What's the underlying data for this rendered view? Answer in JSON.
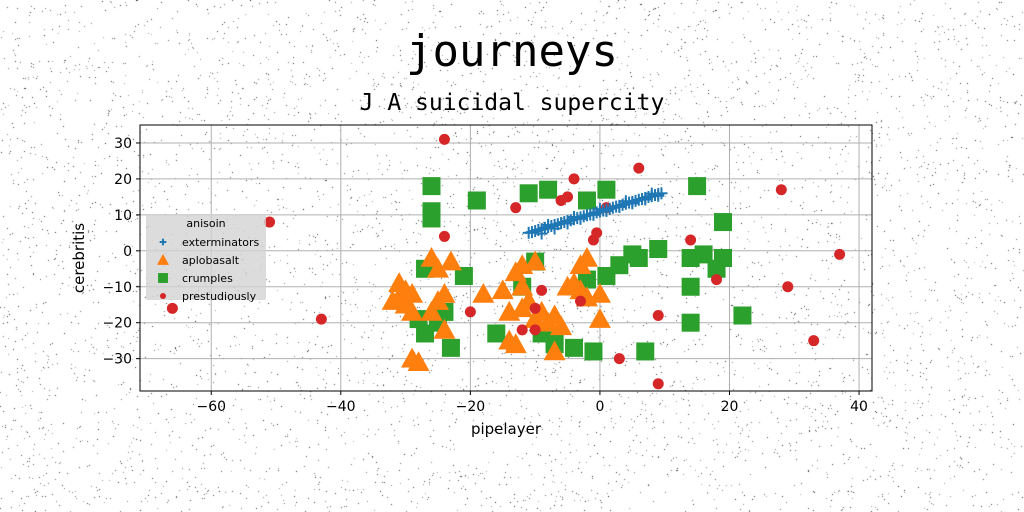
{
  "chart_data": {
    "type": "scatter",
    "title": "journeys",
    "subtitle": "J A suicidal supercity",
    "xlabel": "pipelayer",
    "ylabel": "cerebritis",
    "xlim": [
      -71,
      42
    ],
    "ylim": [
      -39,
      35
    ],
    "xticks": [
      -60,
      -40,
      -20,
      0,
      20,
      40
    ],
    "yticks": [
      -30,
      -20,
      -10,
      0,
      10,
      20,
      30
    ],
    "xtick_labels": [
      "−60",
      "−40",
      "−20",
      "0",
      "20",
      "40"
    ],
    "ytick_labels": [
      "−30",
      "−20",
      "−10",
      "0",
      "10",
      "20",
      "30"
    ],
    "grid": true,
    "legend": {
      "title": "anisoin",
      "placement": "center-left"
    },
    "series": [
      {
        "name": "exterminators",
        "marker": "plus",
        "color": "#1f77b4",
        "points": [
          [
            -11,
            5
          ],
          [
            -10.5,
            5.2
          ],
          [
            -10,
            5.5
          ],
          [
            -9.5,
            5.8
          ],
          [
            -9,
            6
          ],
          [
            -8.5,
            6.4
          ],
          [
            -8,
            6.6
          ],
          [
            -7.5,
            6.9
          ],
          [
            -7,
            7.2
          ],
          [
            -6.5,
            7.4
          ],
          [
            -6,
            7.7
          ],
          [
            -5.5,
            8
          ],
          [
            -5,
            8.3
          ],
          [
            -4.5,
            8.5
          ],
          [
            -4,
            8.8
          ],
          [
            -3.5,
            9.1
          ],
          [
            -3,
            9.3
          ],
          [
            -2.5,
            9.6
          ],
          [
            -2,
            9.9
          ],
          [
            -1.5,
            10.1
          ],
          [
            -1,
            10.4
          ],
          [
            -0.5,
            10.7
          ],
          [
            0,
            10.9
          ],
          [
            0.5,
            11.2
          ],
          [
            1,
            11.5
          ],
          [
            1.5,
            11.7
          ],
          [
            2,
            12
          ],
          [
            2.5,
            12.3
          ],
          [
            3,
            12.5
          ],
          [
            3.5,
            12.8
          ],
          [
            4,
            13.1
          ],
          [
            4.5,
            13.4
          ],
          [
            5,
            13.6
          ],
          [
            5.5,
            13.9
          ],
          [
            6,
            14.2
          ],
          [
            6.5,
            14.4
          ],
          [
            7,
            14.7
          ],
          [
            7.5,
            15
          ],
          [
            8,
            15.2
          ],
          [
            8.5,
            15.5
          ],
          [
            9,
            15.8
          ],
          [
            9.5,
            16
          ],
          [
            -9,
            4.8
          ],
          [
            -7,
            6.2
          ],
          [
            -5,
            7.6
          ],
          [
            -3,
            8.9
          ],
          [
            -1,
            10
          ],
          [
            1,
            11.1
          ],
          [
            3,
            12.2
          ],
          [
            5,
            13.2
          ],
          [
            7,
            14.3
          ],
          [
            9,
            15.3
          ],
          [
            -8,
            7.2
          ],
          [
            -4,
            9.4
          ],
          [
            0,
            11.6
          ],
          [
            4,
            13.8
          ],
          [
            8,
            15.9
          ]
        ]
      },
      {
        "name": "aplobasalt",
        "marker": "triangle",
        "color": "#ff7f0e",
        "points": [
          [
            -31,
            -9
          ],
          [
            -30,
            -11
          ],
          [
            -31,
            -13
          ],
          [
            -30,
            -15
          ],
          [
            -29,
            -17
          ],
          [
            -32,
            -14
          ],
          [
            -29,
            -12
          ],
          [
            -26,
            -17
          ],
          [
            -25,
            -14
          ],
          [
            -29,
            -30
          ],
          [
            -28,
            -31
          ],
          [
            -26,
            -2
          ],
          [
            -25,
            -5
          ],
          [
            -23,
            -3
          ],
          [
            -24,
            -12
          ],
          [
            -24,
            -22
          ],
          [
            -18,
            -12
          ],
          [
            -15,
            -11
          ],
          [
            -14,
            -25
          ],
          [
            -13,
            -26
          ],
          [
            -13,
            -6
          ],
          [
            -12,
            -4
          ],
          [
            -12,
            -16
          ],
          [
            -11,
            -14
          ],
          [
            -10,
            -19
          ],
          [
            -10,
            -3
          ],
          [
            -9,
            -17
          ],
          [
            -8,
            -20
          ],
          [
            -7,
            -18
          ],
          [
            -6,
            -21
          ],
          [
            -7,
            -28
          ],
          [
            -5,
            -10
          ],
          [
            -4,
            -9
          ],
          [
            -3,
            -11
          ],
          [
            -3,
            -4
          ],
          [
            -2,
            -2
          ],
          [
            -2,
            -13
          ],
          [
            0,
            -12
          ],
          [
            0,
            -19
          ],
          [
            -14,
            -17
          ],
          [
            -12,
            -10
          ]
        ]
      },
      {
        "name": "crumples",
        "marker": "square",
        "color": "#2ca02c",
        "points": [
          [
            -26,
            18
          ],
          [
            -26,
            9
          ],
          [
            -26,
            11
          ],
          [
            -27,
            -5
          ],
          [
            -28,
            -19
          ],
          [
            -27,
            -23
          ],
          [
            -24,
            -17
          ],
          [
            -23,
            -27
          ],
          [
            -21,
            -7
          ],
          [
            -19,
            14
          ],
          [
            -16,
            -23
          ],
          [
            -12,
            -10
          ],
          [
            -11,
            16
          ],
          [
            -10,
            -3
          ],
          [
            -9,
            -23
          ],
          [
            -8,
            17
          ],
          [
            -7,
            -25
          ],
          [
            -4,
            -27
          ],
          [
            -2,
            -8
          ],
          [
            -2,
            14
          ],
          [
            -1,
            -28
          ],
          [
            1,
            -7
          ],
          [
            1,
            17
          ],
          [
            3,
            -4
          ],
          [
            5,
            -1
          ],
          [
            6,
            -2
          ],
          [
            7,
            -28
          ],
          [
            9,
            0.5
          ],
          [
            14,
            -2
          ],
          [
            14,
            -10
          ],
          [
            14,
            -20
          ],
          [
            15,
            18
          ],
          [
            16,
            -1
          ],
          [
            18,
            -5
          ],
          [
            19,
            8
          ],
          [
            19,
            -2
          ],
          [
            22,
            -18
          ],
          [
            -25,
            -20
          ],
          [
            -7,
            -26
          ]
        ]
      },
      {
        "name": "prestudiously",
        "marker": "circle",
        "color": "#d62728",
        "points": [
          [
            -66,
            -16
          ],
          [
            -51,
            8
          ],
          [
            -43,
            -19
          ],
          [
            -24,
            31
          ],
          [
            -24,
            4
          ],
          [
            -20,
            -17
          ],
          [
            -13,
            12
          ],
          [
            -12,
            -22
          ],
          [
            -10,
            -22
          ],
          [
            -10,
            -16
          ],
          [
            -9,
            -11
          ],
          [
            -6,
            14
          ],
          [
            -5,
            15
          ],
          [
            -4,
            20
          ],
          [
            -3,
            -14
          ],
          [
            -1,
            3
          ],
          [
            -0.5,
            5
          ],
          [
            1,
            12
          ],
          [
            3,
            -30
          ],
          [
            6,
            23
          ],
          [
            9,
            -37
          ],
          [
            9,
            -18
          ],
          [
            14,
            3
          ],
          [
            18,
            -8
          ],
          [
            28,
            17
          ],
          [
            29,
            -10
          ],
          [
            33,
            -25
          ],
          [
            37,
            -1
          ]
        ]
      }
    ]
  },
  "colors": {
    "background": "#ffffff",
    "plot_frame": "#000000",
    "grid": "#b0b0b0",
    "legend_bg": "#d3d3d3"
  }
}
